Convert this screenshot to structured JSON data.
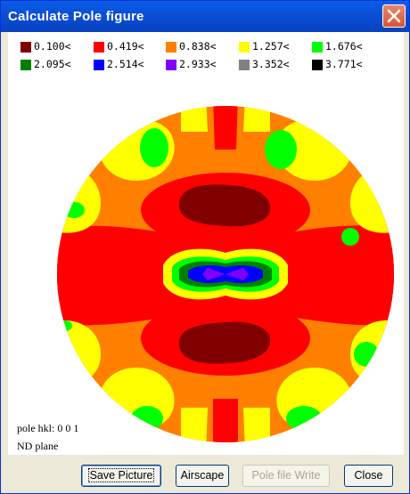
{
  "window": {
    "title": "Calculate Pole figure"
  },
  "legend": [
    {
      "label": "0.100<",
      "color": "#800000"
    },
    {
      "label": "0.419<",
      "color": "#ff0000"
    },
    {
      "label": "0.838<",
      "color": "#ff8000"
    },
    {
      "label": "1.257<",
      "color": "#ffff00"
    },
    {
      "label": "1.676<",
      "color": "#00ff00"
    },
    {
      "label": "2.095<",
      "color": "#008000"
    },
    {
      "label": "2.514<",
      "color": "#0000ff"
    },
    {
      "label": "2.933<",
      "color": "#8000ff"
    },
    {
      "label": "3.352<",
      "color": "#808080"
    },
    {
      "label": "3.771<",
      "color": "#000000"
    }
  ],
  "info": {
    "pole_hkl": "pole hkl: 0 0 1",
    "plane": "ND plane"
  },
  "buttons": {
    "save_picture": "Save Picture",
    "airscape": "Airscape",
    "pole_file_write": "Pole file Write",
    "close": "Close"
  },
  "icons": {
    "close": "close-x-icon"
  }
}
